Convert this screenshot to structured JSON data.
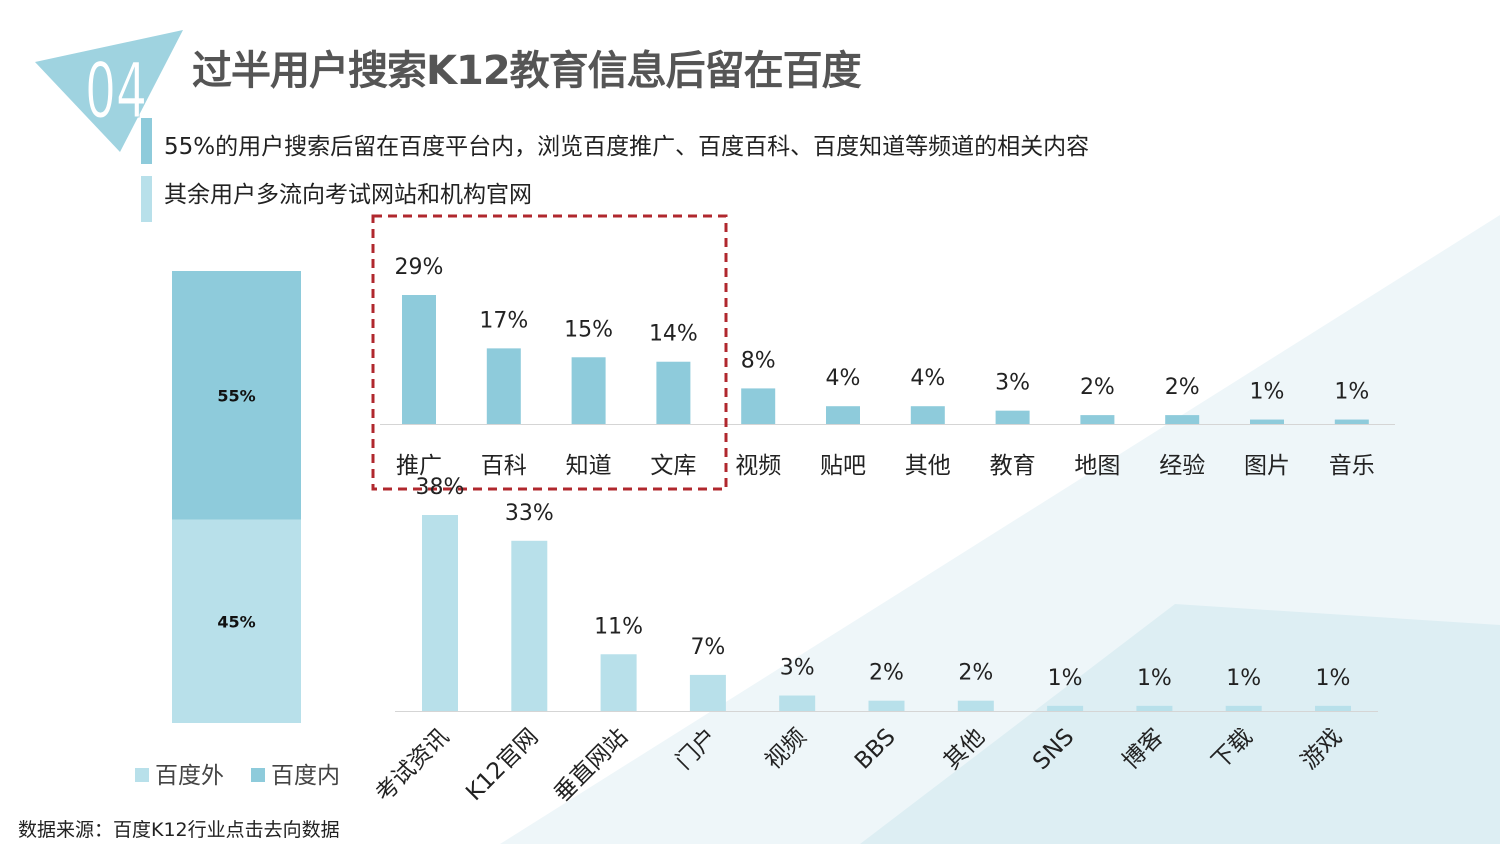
{
  "slide": {
    "number": "04",
    "title": "过半用户搜索K12教育信息后留在百度",
    "bullets": [
      "55%的用户搜索后留在百度平台内，浏览百度推广、百度百科、百度知道等频道的相关内容",
      "其余用户多流向考试网站和机构官网"
    ],
    "source": "数据来源：百度K12行业点击去向数据"
  },
  "legend": {
    "outside": "百度外",
    "inside": "百度内"
  },
  "colors": {
    "inside": "#8ecbdb",
    "outside": "#b8e0ea",
    "highlight_border": "#b0282e",
    "title": "#555555",
    "accent": "#8ecbdb"
  },
  "chart_data": [
    {
      "type": "bar",
      "stacked": true,
      "title": "",
      "categories": [
        ""
      ],
      "series": [
        {
          "name": "百度外",
          "values": [
            45
          ],
          "labels": [
            "45%"
          ]
        },
        {
          "name": "百度内",
          "values": [
            55
          ],
          "labels": [
            "55%"
          ]
        }
      ],
      "ylim": [
        0,
        100
      ],
      "legend": "bottom"
    },
    {
      "type": "bar",
      "title": "",
      "categories": [
        "推广",
        "百科",
        "知道",
        "文库",
        "视频",
        "贴吧",
        "其他",
        "教育",
        "地图",
        "经验",
        "图片",
        "音乐"
      ],
      "values": [
        29,
        17,
        15,
        14,
        8,
        4,
        4,
        3,
        2,
        2,
        1,
        1
      ],
      "labels": [
        "29%",
        "17%",
        "15%",
        "14%",
        "8%",
        "4%",
        "4%",
        "3%",
        "2%",
        "2%",
        "1%",
        "1%"
      ],
      "highlighted_categories": [
        "推广",
        "百科",
        "知道",
        "文库"
      ],
      "ylim": [
        0,
        29
      ]
    },
    {
      "type": "bar",
      "title": "",
      "categories": [
        "考试资讯",
        "K12官网",
        "垂直网站",
        "门户",
        "视频",
        "BBS",
        "其他",
        "SNS",
        "博客",
        "下载",
        "游戏"
      ],
      "values": [
        38,
        33,
        11,
        7,
        3,
        2,
        2,
        1,
        1,
        1,
        1
      ],
      "labels": [
        "38%",
        "33%",
        "11%",
        "7%",
        "3%",
        "2%",
        "2%",
        "1%",
        "1%",
        "1%",
        "1%"
      ],
      "ylim": [
        0,
        38
      ]
    }
  ]
}
